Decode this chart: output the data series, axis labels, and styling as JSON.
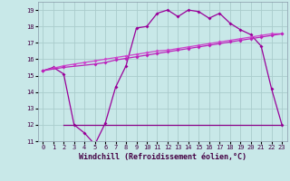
{
  "xlabel": "Windchill (Refroidissement éolien,°C)",
  "bg_color": "#c8e8e8",
  "grid_color": "#aacccc",
  "line1_x": [
    0,
    1,
    2,
    3,
    4,
    5,
    6,
    7,
    8,
    9,
    10,
    11,
    12,
    13,
    14,
    15,
    16,
    17,
    18,
    19,
    20,
    21,
    22,
    23
  ],
  "line1_y": [
    15.3,
    15.5,
    15.1,
    12.0,
    11.5,
    10.8,
    12.1,
    14.3,
    15.6,
    17.9,
    18.0,
    18.8,
    19.0,
    18.6,
    19.0,
    18.9,
    18.5,
    18.8,
    18.2,
    17.8,
    17.5,
    16.8,
    14.2,
    12.0
  ],
  "line2_x": [
    0,
    1,
    2,
    3,
    4,
    5,
    6,
    7,
    8,
    9,
    10,
    11,
    12,
    13,
    14,
    15,
    16,
    17,
    18,
    19,
    20,
    21,
    22,
    23
  ],
  "line2_y": [
    15.3,
    15.45,
    15.6,
    15.7,
    15.8,
    15.9,
    16.0,
    16.1,
    16.2,
    16.3,
    16.4,
    16.5,
    16.55,
    16.65,
    16.75,
    16.85,
    16.95,
    17.05,
    17.15,
    17.25,
    17.35,
    17.45,
    17.55,
    17.55
  ],
  "line3_x": [
    0,
    2,
    5,
    6,
    7,
    8,
    9,
    10,
    11,
    12,
    13,
    14,
    15,
    16,
    17,
    18,
    19,
    20,
    21,
    22,
    23
  ],
  "line3_y": [
    15.3,
    15.5,
    15.7,
    15.8,
    15.95,
    16.05,
    16.15,
    16.25,
    16.35,
    16.45,
    16.55,
    16.65,
    16.75,
    16.85,
    16.95,
    17.05,
    17.15,
    17.25,
    17.35,
    17.45,
    17.55
  ],
  "line4_x": [
    2,
    3,
    5,
    6,
    23
  ],
  "line4_y": [
    12.0,
    12.0,
    12.0,
    12.0,
    12.0
  ],
  "line1_color": "#990099",
  "line2_color": "#cc44cc",
  "line3_color": "#bb22bb",
  "line4_color": "#880088",
  "ylim": [
    11,
    19.5
  ],
  "xlim": [
    -0.5,
    23.5
  ],
  "yticks": [
    11,
    12,
    13,
    14,
    15,
    16,
    17,
    18,
    19
  ],
  "xticks": [
    0,
    1,
    2,
    3,
    4,
    5,
    6,
    7,
    8,
    9,
    10,
    11,
    12,
    13,
    14,
    15,
    16,
    17,
    18,
    19,
    20,
    21,
    22,
    23
  ],
  "tick_fontsize": 5.0,
  "xlabel_fontsize": 6.0
}
